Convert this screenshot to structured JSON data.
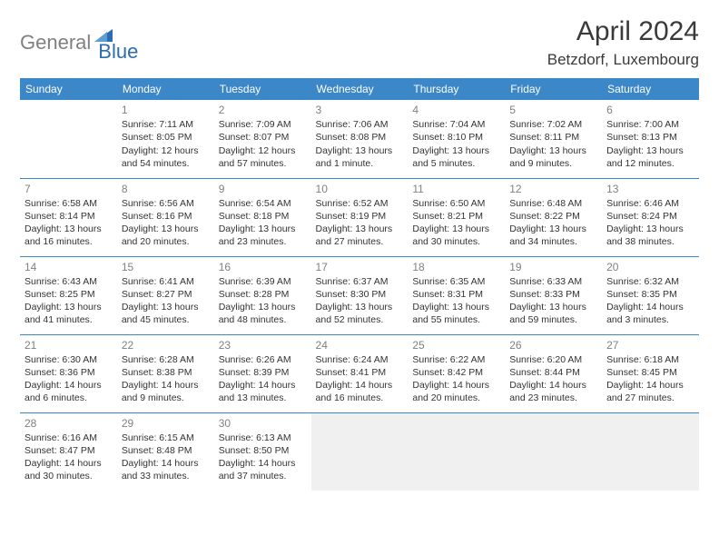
{
  "colors": {
    "header_bg": "#3b87c8",
    "header_text": "#ffffff",
    "border": "#3b87c8",
    "daynum": "#808080",
    "text": "#333333",
    "empty_bg": "#f0f0f0",
    "logo_gray": "#808080",
    "logo_blue": "#2a6db0"
  },
  "logo": {
    "part1": "General",
    "part2": "Blue"
  },
  "title": "April 2024",
  "location": "Betzdorf, Luxembourg",
  "weekdays": [
    "Sunday",
    "Monday",
    "Tuesday",
    "Wednesday",
    "Thursday",
    "Friday",
    "Saturday"
  ],
  "weeks": [
    [
      {
        "blank": true
      },
      {
        "day": "1",
        "sunrise": "Sunrise: 7:11 AM",
        "sunset": "Sunset: 8:05 PM",
        "dl1": "Daylight: 12 hours",
        "dl2": "and 54 minutes."
      },
      {
        "day": "2",
        "sunrise": "Sunrise: 7:09 AM",
        "sunset": "Sunset: 8:07 PM",
        "dl1": "Daylight: 12 hours",
        "dl2": "and 57 minutes."
      },
      {
        "day": "3",
        "sunrise": "Sunrise: 7:06 AM",
        "sunset": "Sunset: 8:08 PM",
        "dl1": "Daylight: 13 hours",
        "dl2": "and 1 minute."
      },
      {
        "day": "4",
        "sunrise": "Sunrise: 7:04 AM",
        "sunset": "Sunset: 8:10 PM",
        "dl1": "Daylight: 13 hours",
        "dl2": "and 5 minutes."
      },
      {
        "day": "5",
        "sunrise": "Sunrise: 7:02 AM",
        "sunset": "Sunset: 8:11 PM",
        "dl1": "Daylight: 13 hours",
        "dl2": "and 9 minutes."
      },
      {
        "day": "6",
        "sunrise": "Sunrise: 7:00 AM",
        "sunset": "Sunset: 8:13 PM",
        "dl1": "Daylight: 13 hours",
        "dl2": "and 12 minutes."
      }
    ],
    [
      {
        "day": "7",
        "sunrise": "Sunrise: 6:58 AM",
        "sunset": "Sunset: 8:14 PM",
        "dl1": "Daylight: 13 hours",
        "dl2": "and 16 minutes."
      },
      {
        "day": "8",
        "sunrise": "Sunrise: 6:56 AM",
        "sunset": "Sunset: 8:16 PM",
        "dl1": "Daylight: 13 hours",
        "dl2": "and 20 minutes."
      },
      {
        "day": "9",
        "sunrise": "Sunrise: 6:54 AM",
        "sunset": "Sunset: 8:18 PM",
        "dl1": "Daylight: 13 hours",
        "dl2": "and 23 minutes."
      },
      {
        "day": "10",
        "sunrise": "Sunrise: 6:52 AM",
        "sunset": "Sunset: 8:19 PM",
        "dl1": "Daylight: 13 hours",
        "dl2": "and 27 minutes."
      },
      {
        "day": "11",
        "sunrise": "Sunrise: 6:50 AM",
        "sunset": "Sunset: 8:21 PM",
        "dl1": "Daylight: 13 hours",
        "dl2": "and 30 minutes."
      },
      {
        "day": "12",
        "sunrise": "Sunrise: 6:48 AM",
        "sunset": "Sunset: 8:22 PM",
        "dl1": "Daylight: 13 hours",
        "dl2": "and 34 minutes."
      },
      {
        "day": "13",
        "sunrise": "Sunrise: 6:46 AM",
        "sunset": "Sunset: 8:24 PM",
        "dl1": "Daylight: 13 hours",
        "dl2": "and 38 minutes."
      }
    ],
    [
      {
        "day": "14",
        "sunrise": "Sunrise: 6:43 AM",
        "sunset": "Sunset: 8:25 PM",
        "dl1": "Daylight: 13 hours",
        "dl2": "and 41 minutes."
      },
      {
        "day": "15",
        "sunrise": "Sunrise: 6:41 AM",
        "sunset": "Sunset: 8:27 PM",
        "dl1": "Daylight: 13 hours",
        "dl2": "and 45 minutes."
      },
      {
        "day": "16",
        "sunrise": "Sunrise: 6:39 AM",
        "sunset": "Sunset: 8:28 PM",
        "dl1": "Daylight: 13 hours",
        "dl2": "and 48 minutes."
      },
      {
        "day": "17",
        "sunrise": "Sunrise: 6:37 AM",
        "sunset": "Sunset: 8:30 PM",
        "dl1": "Daylight: 13 hours",
        "dl2": "and 52 minutes."
      },
      {
        "day": "18",
        "sunrise": "Sunrise: 6:35 AM",
        "sunset": "Sunset: 8:31 PM",
        "dl1": "Daylight: 13 hours",
        "dl2": "and 55 minutes."
      },
      {
        "day": "19",
        "sunrise": "Sunrise: 6:33 AM",
        "sunset": "Sunset: 8:33 PM",
        "dl1": "Daylight: 13 hours",
        "dl2": "and 59 minutes."
      },
      {
        "day": "20",
        "sunrise": "Sunrise: 6:32 AM",
        "sunset": "Sunset: 8:35 PM",
        "dl1": "Daylight: 14 hours",
        "dl2": "and 3 minutes."
      }
    ],
    [
      {
        "day": "21",
        "sunrise": "Sunrise: 6:30 AM",
        "sunset": "Sunset: 8:36 PM",
        "dl1": "Daylight: 14 hours",
        "dl2": "and 6 minutes."
      },
      {
        "day": "22",
        "sunrise": "Sunrise: 6:28 AM",
        "sunset": "Sunset: 8:38 PM",
        "dl1": "Daylight: 14 hours",
        "dl2": "and 9 minutes."
      },
      {
        "day": "23",
        "sunrise": "Sunrise: 6:26 AM",
        "sunset": "Sunset: 8:39 PM",
        "dl1": "Daylight: 14 hours",
        "dl2": "and 13 minutes."
      },
      {
        "day": "24",
        "sunrise": "Sunrise: 6:24 AM",
        "sunset": "Sunset: 8:41 PM",
        "dl1": "Daylight: 14 hours",
        "dl2": "and 16 minutes."
      },
      {
        "day": "25",
        "sunrise": "Sunrise: 6:22 AM",
        "sunset": "Sunset: 8:42 PM",
        "dl1": "Daylight: 14 hours",
        "dl2": "and 20 minutes."
      },
      {
        "day": "26",
        "sunrise": "Sunrise: 6:20 AM",
        "sunset": "Sunset: 8:44 PM",
        "dl1": "Daylight: 14 hours",
        "dl2": "and 23 minutes."
      },
      {
        "day": "27",
        "sunrise": "Sunrise: 6:18 AM",
        "sunset": "Sunset: 8:45 PM",
        "dl1": "Daylight: 14 hours",
        "dl2": "and 27 minutes."
      }
    ],
    [
      {
        "day": "28",
        "sunrise": "Sunrise: 6:16 AM",
        "sunset": "Sunset: 8:47 PM",
        "dl1": "Daylight: 14 hours",
        "dl2": "and 30 minutes."
      },
      {
        "day": "29",
        "sunrise": "Sunrise: 6:15 AM",
        "sunset": "Sunset: 8:48 PM",
        "dl1": "Daylight: 14 hours",
        "dl2": "and 33 minutes."
      },
      {
        "day": "30",
        "sunrise": "Sunrise: 6:13 AM",
        "sunset": "Sunset: 8:50 PM",
        "dl1": "Daylight: 14 hours",
        "dl2": "and 37 minutes."
      },
      {
        "empty": true
      },
      {
        "empty": true
      },
      {
        "empty": true
      },
      {
        "empty": true
      }
    ]
  ]
}
